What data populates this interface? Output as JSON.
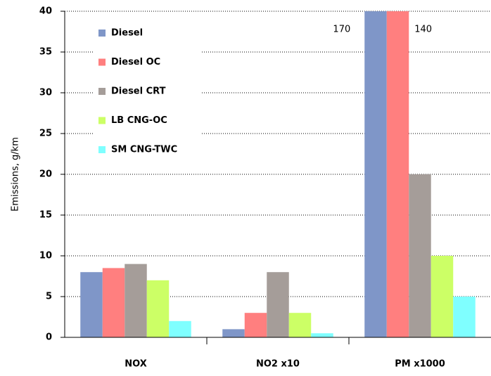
{
  "chart_data": {
    "type": "bar",
    "y_label": "Emissions, g/km",
    "categories": [
      "NOX",
      "NO2 x10",
      "PM x1000"
    ],
    "series": [
      {
        "name": "Diesel",
        "color": "#7f96c8",
        "values": [
          8,
          1,
          170
        ],
        "value_labels": [
          null,
          null,
          "170"
        ]
      },
      {
        "name": "Diesel OC",
        "color": "#ff7f7f",
        "values": [
          8.5,
          3,
          140
        ],
        "value_labels": [
          null,
          null,
          "140"
        ]
      },
      {
        "name": "Diesel CRT",
        "color": "#a59d99",
        "values": [
          9,
          8,
          20
        ]
      },
      {
        "name": "LB CNG-OC",
        "color": "#ccff66",
        "values": [
          7,
          3,
          10
        ]
      },
      {
        "name": "SM CNG-TWC",
        "color": "#7fffff",
        "values": [
          2,
          0.5,
          5
        ]
      }
    ],
    "ylim": [
      0,
      40
    ],
    "yticks": [
      0,
      5,
      10,
      15,
      20,
      25,
      30,
      35,
      40
    ],
    "grid": true
  }
}
